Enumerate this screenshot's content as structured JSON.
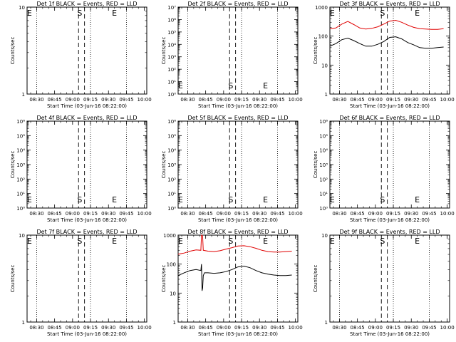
{
  "chart_data": [
    {
      "type": "line",
      "title": "Det 1f BLACK = Events, RED = LLD",
      "ylabel": "Counts/sec",
      "xlabel": "Start Time (03-Jun-16 08:22:00)",
      "yscale": "log",
      "ylim": [
        1,
        10
      ],
      "ytick_labels": [
        "1",
        "10"
      ],
      "xticks": [
        "08:30",
        "08:45",
        "09:00",
        "09:15",
        "09:30",
        "09:45",
        "10:00"
      ],
      "markers": [
        "E",
        "S",
        "E"
      ],
      "series": []
    },
    {
      "type": "line",
      "title": "Det 2f BLACK = Events, RED = LLD",
      "ylabel": "Counts/sec",
      "xlabel": "Start Time (03-Jun-16 08:22:00)",
      "yscale": "log",
      "ylim": [
        1,
        10000000
      ],
      "ytick_labels": [
        "10⁰",
        "10¹",
        "10²",
        "10³",
        "10⁴",
        "10⁵",
        "10⁶",
        "10⁷"
      ],
      "xticks": [
        "08:30",
        "08:45",
        "09:00",
        "09:15",
        "09:30",
        "09:45",
        "10:00"
      ],
      "markers": [
        "E",
        "S",
        "E"
      ],
      "series": []
    },
    {
      "type": "line",
      "title": "Det 3f BLACK = Events, RED = LLD",
      "ylabel": "Counts/sec",
      "xlabel": "Start Time (03-Jun-16 08:22:00)",
      "yscale": "log",
      "ylim": [
        1,
        1000
      ],
      "ytick_labels": [
        "1",
        "10",
        "100",
        "1000"
      ],
      "xticks": [
        "08:30",
        "08:45",
        "09:00",
        "09:15",
        "09:30",
        "09:45",
        "10:00"
      ],
      "markers": [
        "E",
        "S",
        "E"
      ],
      "series": [
        {
          "color": "#e00000",
          "x": [
            0,
            5,
            10,
            15,
            20,
            25,
            30,
            35,
            40,
            45,
            50,
            55,
            60,
            65,
            70,
            75,
            80,
            85,
            90,
            95
          ],
          "y": [
            180,
            190,
            260,
            320,
            250,
            190,
            175,
            185,
            210,
            260,
            330,
            350,
            300,
            240,
            200,
            180,
            175,
            170,
            170,
            180
          ]
        },
        {
          "color": "#000000",
          "x": [
            0,
            5,
            10,
            15,
            20,
            25,
            30,
            35,
            40,
            45,
            50,
            55,
            60,
            65,
            70,
            75,
            80,
            85,
            90,
            95
          ],
          "y": [
            45,
            55,
            75,
            85,
            70,
            55,
            45,
            45,
            52,
            65,
            90,
            95,
            80,
            60,
            50,
            40,
            38,
            38,
            40,
            42
          ]
        }
      ]
    },
    {
      "type": "line",
      "title": "Det 4f BLACK = Events, RED = LLD",
      "ylabel": "Counts/sec",
      "xlabel": "Start Time (03-Jun-16 08:22:00)",
      "yscale": "log",
      "ylim": [
        1,
        1000000
      ],
      "ytick_labels": [
        "10⁰",
        "10¹",
        "10²",
        "10³",
        "10⁴",
        "10⁵",
        "10⁶"
      ],
      "xticks": [
        "08:30",
        "08:45",
        "09:00",
        "09:15",
        "09:30",
        "09:45",
        "10:00"
      ],
      "markers": [
        "E",
        "S",
        "E"
      ],
      "series": []
    },
    {
      "type": "line",
      "title": "Det 5f BLACK = Events, RED = LLD",
      "ylabel": "Counts/sec",
      "xlabel": "Start Time (03-Jun-16 08:22:00)",
      "yscale": "log",
      "ylim": [
        1,
        1000000
      ],
      "ytick_labels": [
        "10⁰",
        "10¹",
        "10²",
        "10³",
        "10⁴",
        "10⁵",
        "10⁶"
      ],
      "xticks": [
        "08:30",
        "08:45",
        "09:00",
        "09:15",
        "09:30",
        "09:45",
        "10:00"
      ],
      "markers": [
        "E",
        "S",
        "E"
      ],
      "series": []
    },
    {
      "type": "line",
      "title": "Det 6f BLACK = Events, RED = LLD",
      "ylabel": "Counts/sec",
      "xlabel": "Start Time (03-Jun-16 08:22:00)",
      "yscale": "log",
      "ylim": [
        1,
        1000000
      ],
      "ytick_labels": [
        "10⁰",
        "10¹",
        "10²",
        "10³",
        "10⁴",
        "10⁵",
        "10⁶"
      ],
      "xticks": [
        "08:30",
        "08:45",
        "09:00",
        "09:15",
        "09:30",
        "09:45",
        "10:00"
      ],
      "markers": [
        "E",
        "S",
        "E"
      ],
      "series": []
    },
    {
      "type": "line",
      "title": "Det 7f BLACK = Events, RED = LLD",
      "ylabel": "Counts/sec",
      "xlabel": "Start Time (03-Jun-16 08:22:00)",
      "yscale": "log",
      "ylim": [
        1,
        10
      ],
      "ytick_labels": [
        "1",
        "10"
      ],
      "xticks": [
        "08:30",
        "08:45",
        "09:00",
        "09:15",
        "09:30",
        "09:45",
        "10:00"
      ],
      "markers": [
        "E",
        "S",
        "E"
      ],
      "series": []
    },
    {
      "type": "line",
      "title": "Det 8f BLACK = Events, RED = LLD",
      "ylabel": "Counts/sec",
      "xlabel": "Start Time (03-Jun-16 08:22:00)",
      "yscale": "log",
      "ylim": [
        1,
        1000
      ],
      "ytick_labels": [
        "1",
        "10",
        "100",
        "1000"
      ],
      "xticks": [
        "08:30",
        "08:45",
        "09:00",
        "09:15",
        "09:30",
        "09:45",
        "10:00"
      ],
      "markers": [
        "E",
        "S",
        "E"
      ],
      "series": [
        {
          "color": "#e00000",
          "x": [
            0,
            5,
            10,
            15,
            19,
            19.5,
            20,
            20.5,
            21,
            25,
            30,
            35,
            40,
            45,
            50,
            55,
            60,
            65,
            70,
            75,
            80,
            85,
            90,
            95
          ],
          "y": [
            220,
            240,
            280,
            310,
            300,
            1000,
            1000,
            900,
            300,
            280,
            270,
            290,
            330,
            370,
            420,
            430,
            400,
            350,
            300,
            270,
            260,
            260,
            270,
            280
          ]
        },
        {
          "color": "#000000",
          "x": [
            0,
            5,
            10,
            15,
            19,
            19.5,
            20,
            20.5,
            21,
            22,
            25,
            30,
            35,
            40,
            45,
            50,
            55,
            60,
            65,
            70,
            75,
            80,
            85,
            90,
            95
          ],
          "y": [
            40,
            50,
            60,
            65,
            60,
            100,
            12,
            15,
            40,
            50,
            50,
            48,
            50,
            55,
            65,
            80,
            85,
            75,
            60,
            50,
            45,
            42,
            40,
            40,
            42
          ]
        }
      ]
    },
    {
      "type": "line",
      "title": "Det 9f BLACK = Events, RED = LLD",
      "ylabel": "Counts/sec",
      "xlabel": "Start Time (03-Jun-16 08:22:00)",
      "yscale": "log",
      "ylim": [
        1,
        10
      ],
      "ytick_labels": [
        "1",
        "10"
      ],
      "xticks": [
        "08:30",
        "08:45",
        "09:00",
        "09:15",
        "09:30",
        "09:45",
        "10:00"
      ],
      "markers": [
        "E",
        "S",
        "E"
      ],
      "series": []
    }
  ]
}
